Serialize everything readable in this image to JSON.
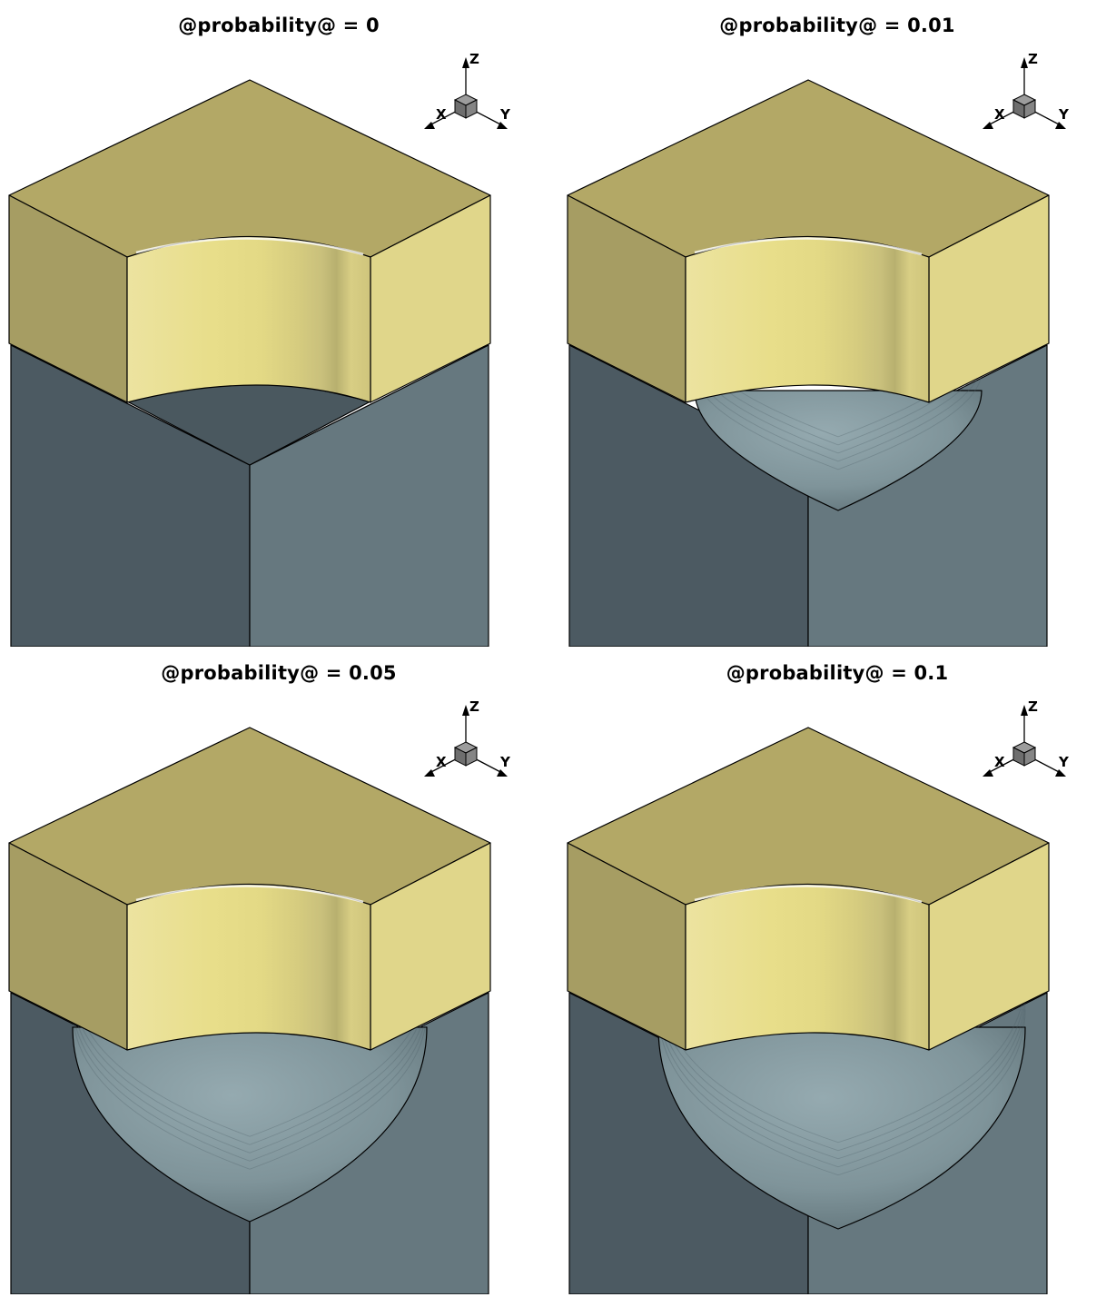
{
  "figure": {
    "panels": [
      {
        "id": "p0",
        "title": "@probability@ = 0",
        "value": 0
      },
      {
        "id": "p1",
        "title": "@probability@ = 0.01",
        "value": 0.01
      },
      {
        "id": "p2",
        "title": "@probability@ = 0.05",
        "value": 0.05
      },
      {
        "id": "p3",
        "title": "@probability@ = 0.1",
        "value": 0.1
      }
    ],
    "axis_labels": {
      "x": "X",
      "y": "Y",
      "z": "Z"
    },
    "colors": {
      "top_face": "#b3a866",
      "left_face_upper": "#a69d63",
      "right_face_upper": "#e0d68a",
      "inner_wall": "#e6dc8c",
      "column_left": "#4c5a62",
      "column_right": "#66787f",
      "crater_surface": "#84999f",
      "edge": "#000000"
    }
  }
}
